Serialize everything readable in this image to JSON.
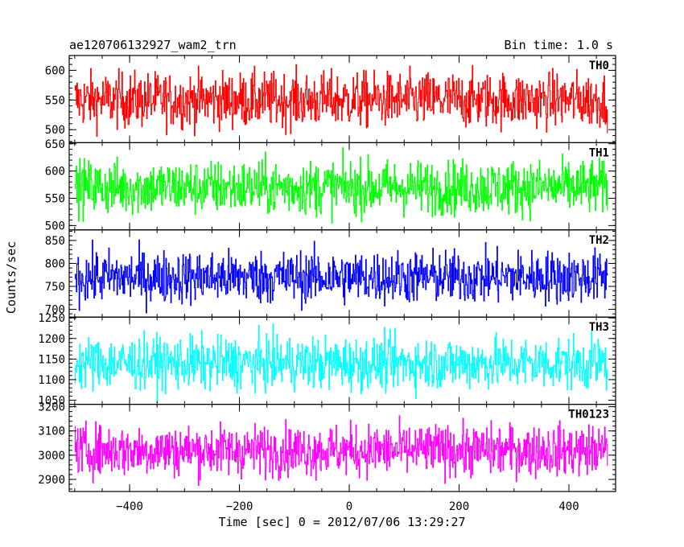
{
  "header": {
    "title": "ae120706132927_wam2_trn",
    "bin_time": "Bin time: 1.0 s"
  },
  "chart_data": {
    "type": "line",
    "xlabel": "Time [sec] 0 = 2012/07/06 13:29:27",
    "ylabel": "Counts/sec",
    "xlim": [
      -510,
      485
    ],
    "x_range": [
      -500,
      470
    ],
    "x_ticks": [
      -400,
      -200,
      0,
      200,
      400
    ],
    "x_tick_labels": [
      "−400",
      "−200",
      "0",
      "200",
      "400"
    ],
    "panels": [
      {
        "name": "TH0",
        "color": "#ff0000",
        "ylim": [
          478,
          625
        ],
        "y_ticks": [
          500,
          550,
          600
        ],
        "y_tick_labels": [
          "500",
          "550",
          "600"
        ],
        "mean": 550,
        "amplitude": 42
      },
      {
        "name": "TH1",
        "color": "#00ff00",
        "ylim": [
          492,
          652
        ],
        "y_ticks": [
          500,
          550,
          600,
          650
        ],
        "y_tick_labels": [
          "500",
          "550",
          "600",
          "650"
        ],
        "mean": 570,
        "amplitude": 45
      },
      {
        "name": "TH2",
        "color": "#0000ff",
        "ylim": [
          683,
          873
        ],
        "y_ticks": [
          700,
          750,
          800,
          850
        ],
        "y_tick_labels": [
          "700",
          "750",
          "800",
          "850"
        ],
        "mean": 770,
        "amplitude": 52
      },
      {
        "name": "TH3",
        "color": "#00ffff",
        "ylim": [
          1040,
          1252
        ],
        "y_ticks": [
          1050,
          1100,
          1150,
          1200,
          1250
        ],
        "y_tick_labels": [
          "1050",
          "1100",
          "1150",
          "1200",
          "1250"
        ],
        "mean": 1140,
        "amplitude": 58
      },
      {
        "name": "TH0123",
        "color": "#ff00ff",
        "ylim": [
          2850,
          3210
        ],
        "y_ticks": [
          2900,
          3000,
          3100,
          3200
        ],
        "y_tick_labels": [
          "2900",
          "3000",
          "3100",
          "3200"
        ],
        "mean": 3020,
        "amplitude": 95
      }
    ]
  }
}
